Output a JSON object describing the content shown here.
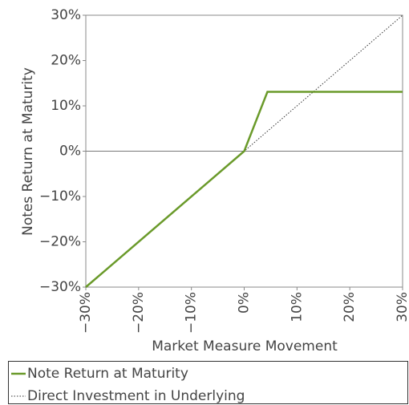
{
  "chart_data": {
    "type": "line",
    "x_label": "Market Measure Movement",
    "y_label": "Notes Return at Maturity",
    "xlim": [
      -30,
      30
    ],
    "ylim": [
      -30,
      30
    ],
    "xticks": [
      {
        "value": -30,
        "label": "−30%"
      },
      {
        "value": -20,
        "label": "−20%"
      },
      {
        "value": -10,
        "label": "−10%"
      },
      {
        "value": 0,
        "label": "0%"
      },
      {
        "value": 10,
        "label": "10%"
      },
      {
        "value": 20,
        "label": "20%"
      },
      {
        "value": 30,
        "label": "30%"
      }
    ],
    "yticks": [
      {
        "value": -30,
        "label": "−30%"
      },
      {
        "value": -20,
        "label": "−20%"
      },
      {
        "value": -10,
        "label": "−10%"
      },
      {
        "value": 0,
        "label": "0%"
      },
      {
        "value": 10,
        "label": "10%"
      },
      {
        "value": 20,
        "label": "20%"
      },
      {
        "value": 30,
        "label": "30%"
      }
    ],
    "series": [
      {
        "name": "Note Return at Maturity",
        "color": "#6a9a2a",
        "dash": "solid",
        "x": [
          -30,
          0,
          4.4,
          30
        ],
        "values": [
          -30,
          0,
          13.1,
          13.1
        ]
      },
      {
        "name": "Direct Investment in Underlying",
        "color": "#333333",
        "dash": "dotted",
        "x": [
          -30,
          0,
          30
        ],
        "values": [
          -30,
          0,
          30
        ]
      }
    ]
  }
}
